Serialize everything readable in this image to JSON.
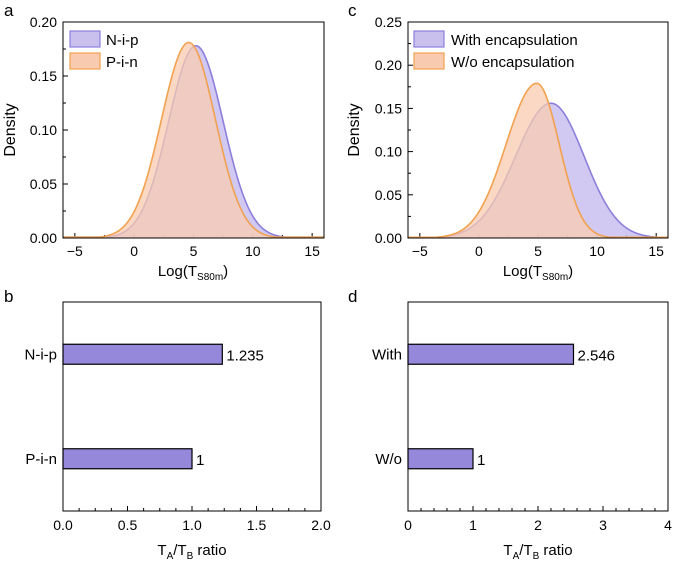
{
  "chart_data": [
    {
      "panel": "a",
      "type": "area",
      "title": "",
      "ylabel": "Density",
      "xlabel_main": "Log(T",
      "xlabel_sub": "S80m",
      "xlabel_close": ")",
      "xlim": [
        -6,
        16
      ],
      "ylim": [
        0,
        0.2
      ],
      "xticks": [
        -5,
        0,
        5,
        10,
        15
      ],
      "yticks": [
        0.0,
        0.05,
        0.1,
        0.15,
        0.2
      ],
      "ytick_labels": [
        "0.00",
        "0.05",
        "0.10",
        "0.15",
        "0.20"
      ],
      "legend": [
        "N-i-p",
        "P-i-n"
      ],
      "series": [
        {
          "name": "N-i-p",
          "color": "#8c7fdc",
          "fill": "#c9c0ee",
          "peak_x": 5.2,
          "peak_y": 0.178,
          "sigma_left": 2.3,
          "sigma_right": 2.3
        },
        {
          "name": "P-i-n",
          "color": "#f2a14e",
          "fill": "#f8cbb0",
          "peak_x": 4.6,
          "peak_y": 0.181,
          "sigma_left": 2.3,
          "sigma_right": 2.25
        }
      ]
    },
    {
      "panel": "c",
      "type": "area",
      "title": "",
      "ylabel": "Density",
      "xlabel_main": "Log(T",
      "xlabel_sub": "S80m",
      "xlabel_close": ")",
      "xlim": [
        -6,
        16
      ],
      "ylim": [
        0,
        0.25
      ],
      "xticks": [
        -5,
        0,
        5,
        10,
        15
      ],
      "yticks": [
        0.0,
        0.05,
        0.1,
        0.15,
        0.2,
        0.25
      ],
      "ytick_labels": [
        "0.00",
        "0.05",
        "0.10",
        "0.15",
        "0.20",
        "0.25"
      ],
      "legend": [
        "With encapsulation",
        "W/o encapsulation"
      ],
      "series": [
        {
          "name": "With encapsulation",
          "color": "#8c7fdc",
          "fill": "#c9c0ee",
          "peak_x": 6.1,
          "peak_y": 0.156,
          "sigma_left": 3.0,
          "sigma_right": 2.8
        },
        {
          "name": "W/o encapsulation",
          "color": "#f2a14e",
          "fill": "#f8cbb0",
          "peak_x": 4.9,
          "peak_y": 0.179,
          "sigma_left": 2.6,
          "sigma_right": 1.9
        }
      ]
    },
    {
      "panel": "b",
      "type": "bar",
      "orientation": "horizontal",
      "categories": [
        "N-i-p",
        "P-i-n"
      ],
      "values": [
        1.235,
        1
      ],
      "value_labels": [
        "1.235",
        "1"
      ],
      "xlim": [
        0,
        2
      ],
      "xticks": [
        0.0,
        0.5,
        1.0,
        1.5,
        2.0
      ],
      "xtick_labels": [
        "0.0",
        "0.5",
        "1.0",
        "1.5",
        "2.0"
      ],
      "xlabel_main": "T",
      "xlabel_sub1": "A",
      "xlabel_mid": "/T",
      "xlabel_sub2": "B",
      "xlabel_tail": " ratio",
      "bar_color": "#9587da"
    },
    {
      "panel": "d",
      "type": "bar",
      "orientation": "horizontal",
      "categories": [
        "With",
        "W/o"
      ],
      "values": [
        2.546,
        1
      ],
      "value_labels": [
        "2.546",
        "1"
      ],
      "xlim": [
        0,
        4
      ],
      "xticks": [
        0,
        1,
        2,
        3,
        4
      ],
      "xtick_labels": [
        "0",
        "1",
        "2",
        "3",
        "4"
      ],
      "xlabel_main": "T",
      "xlabel_sub1": "A",
      "xlabel_mid": "/T",
      "xlabel_sub2": "B",
      "xlabel_tail": " ratio",
      "bar_color": "#9587da"
    }
  ]
}
